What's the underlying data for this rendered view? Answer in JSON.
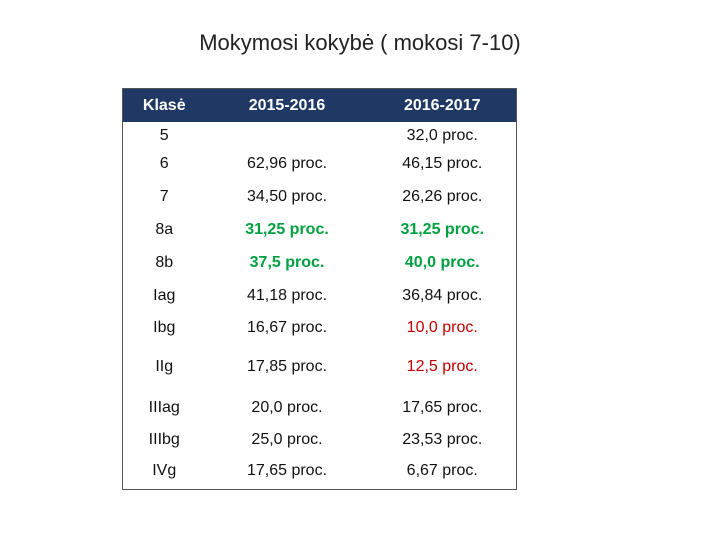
{
  "title": "Mokymosi kokybė ( mokosi 7-10)",
  "table": {
    "header": [
      "Klasė",
      "2015-2016",
      "2016-2017"
    ],
    "rows": [
      [
        "5",
        null,
        "32,0 proc."
      ],
      [
        "6",
        "62,96 proc.",
        "46,15 proc."
      ],
      [
        "7",
        "34,50 proc.",
        "26,26 proc."
      ],
      [
        "8a",
        "31,25 proc.",
        "31,25 proc."
      ],
      [
        "8b",
        "37,5 proc.",
        "40,0 proc."
      ],
      [
        "Iag",
        "41,18 proc.",
        "36,84 proc."
      ],
      [
        "Ibg",
        "16,67 proc.",
        "10,0 proc."
      ],
      [
        "IIg",
        "17,85 proc.",
        "12,5 proc."
      ],
      [
        "IIIag",
        "20,0 proc.",
        "17,65 proc."
      ],
      [
        "IIIbg",
        "25,0 proc.",
        "23,53 proc."
      ],
      [
        "IVg",
        "17,65 proc.",
        "6,67 proc."
      ]
    ]
  }
}
